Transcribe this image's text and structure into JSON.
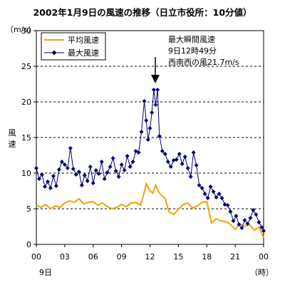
{
  "chart_data": {
    "type": "line",
    "title": "2002年1月9日の風速の推移（日立市役所：10分値）",
    "y_unit": "（m/s）",
    "ylabel": "風速",
    "x_unit": "（時）",
    "date_label": "9日",
    "ylim": [
      0,
      30
    ],
    "y_ticks": [
      "0",
      "5",
      "10",
      "15",
      "20",
      "25",
      "30"
    ],
    "y_tick_values": [
      0,
      5,
      10,
      15,
      20,
      25,
      30
    ],
    "xlim": [
      0,
      24
    ],
    "x_ticks": [
      "00",
      "03",
      "06",
      "09",
      "12",
      "15",
      "18",
      "21",
      "00"
    ],
    "x_tick_values": [
      0,
      3,
      6,
      9,
      12,
      15,
      18,
      21,
      24
    ],
    "grid": "horizontal dashed lines at 5, 10, 15, 20, 25",
    "legend_position": "top-left",
    "annotation": {
      "lines": [
        "最大瞬間風速",
        "9日12時49分",
        "西南西の風21.7m/s"
      ],
      "x": 12.8,
      "y": 21.7
    },
    "series": [
      {
        "name": "平均風速",
        "color": "#f5a000",
        "x": [
          0,
          0.5,
          1,
          1.5,
          2,
          2.5,
          3,
          3.5,
          4,
          4.5,
          5,
          5.5,
          6,
          6.5,
          7,
          7.5,
          8,
          8.5,
          9,
          9.5,
          10,
          10.5,
          11,
          11.3,
          11.6,
          12,
          12.3,
          12.6,
          12.9,
          13.2,
          13.6,
          14,
          14.5,
          15,
          15.5,
          16,
          16.5,
          17,
          17.5,
          18,
          18.5,
          19,
          19.5,
          20,
          20.5,
          21,
          21.5,
          22,
          22.5,
          23,
          23.5,
          24
        ],
        "y": [
          5.5,
          5.2,
          5.6,
          5.0,
          5.4,
          5.2,
          5.8,
          6.1,
          5.9,
          6.4,
          5.7,
          5.9,
          6.0,
          5.5,
          5.8,
          5.3,
          5.0,
          5.2,
          5.6,
          5.3,
          5.8,
          5.9,
          5.5,
          6.8,
          8.5,
          7.5,
          7.2,
          8.3,
          7.4,
          6.9,
          6.4,
          4.6,
          4.2,
          4.9,
          5.6,
          5.8,
          5.1,
          5.4,
          5.9,
          6.0,
          3.0,
          3.6,
          3.3,
          3.2,
          2.8,
          2.1,
          2.9,
          2.5,
          2.8,
          2.0,
          2.4,
          1.0
        ]
      },
      {
        "name": "最大風速",
        "color": "#00007a",
        "x": [
          0,
          0.3,
          0.6,
          0.9,
          1.2,
          1.5,
          1.8,
          2.1,
          2.4,
          2.7,
          3,
          3.3,
          3.6,
          3.9,
          4.2,
          4.5,
          4.8,
          5.1,
          5.4,
          5.7,
          6,
          6.3,
          6.6,
          6.9,
          7.2,
          7.5,
          7.8,
          8.1,
          8.4,
          8.7,
          9,
          9.3,
          9.6,
          9.9,
          10.2,
          10.5,
          10.8,
          11.1,
          11.4,
          11.6,
          11.8,
          12,
          12.2,
          12.4,
          12.6,
          12.8,
          13,
          13.3,
          13.6,
          13.9,
          14.2,
          14.5,
          14.8,
          15.1,
          15.4,
          15.7,
          16,
          16.3,
          16.6,
          16.9,
          17.2,
          17.5,
          17.8,
          18.1,
          18.4,
          18.7,
          19,
          19.3,
          19.6,
          19.9,
          20.2,
          20.5,
          20.8,
          21.1,
          21.4,
          21.7,
          22,
          22.3,
          22.6,
          22.9,
          23.2,
          23.5,
          23.8,
          24
        ],
        "y": [
          10.7,
          9.2,
          9.8,
          8.1,
          8.8,
          7.9,
          9.6,
          8.2,
          10.5,
          11.6,
          11.2,
          10.7,
          13.5,
          10.6,
          9.8,
          10.2,
          8.3,
          9.7,
          8.9,
          10.9,
          8.6,
          10.4,
          9.9,
          11.6,
          9.2,
          10.1,
          10.9,
          12.1,
          10.3,
          9.5,
          11.2,
          10.4,
          12.4,
          10.9,
          11.6,
          13.1,
          12.9,
          15.8,
          20.1,
          17.4,
          14.7,
          16.3,
          18.5,
          21.7,
          19.6,
          21.7,
          15.2,
          13.1,
          12.7,
          11.6,
          10.9,
          11.8,
          11.9,
          12.7,
          11.3,
          12.3,
          10.7,
          9.5,
          12.9,
          11.1,
          8.3,
          7.9,
          7.1,
          6.5,
          8.1,
          7.4,
          6.6,
          7.1,
          6.5,
          5.6,
          5.5,
          4.6,
          3.3,
          4.0,
          2.8,
          2.3,
          3.4,
          2.9,
          3.7,
          4.8,
          4.2,
          3.1,
          2.4,
          1.9
        ]
      }
    ]
  }
}
